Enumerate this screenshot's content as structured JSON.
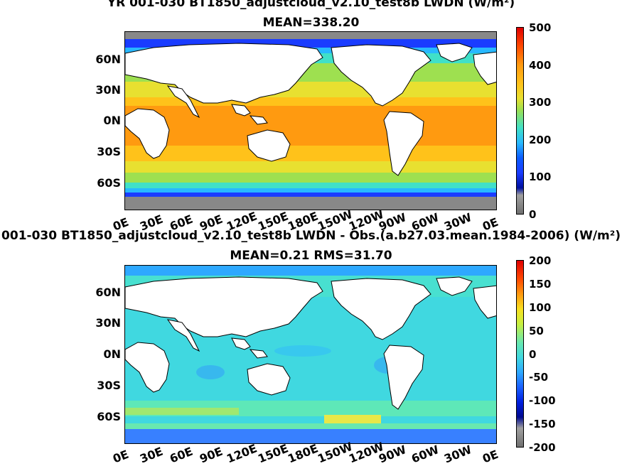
{
  "panels": [
    {
      "title_line1": "YR 001-030 BT1850_adjustcloud_v2.10_test8b LWDN (W/m²)",
      "title_line2": "MEAN=338.20",
      "lat_labels": [
        "60N",
        "30N",
        "0N",
        "30S",
        "60S"
      ],
      "lon_labels": [
        "0E",
        "30E",
        "60E",
        "90E",
        "120E",
        "150E",
        "180E",
        "150W",
        "120W",
        "90W",
        "60W",
        "30W",
        "0E"
      ],
      "colorbar_labels": [
        "500",
        "400",
        "300",
        "200",
        "100",
        "0"
      ]
    },
    {
      "title_line1": "001-030 BT1850_adjustcloud_v2.10_test8b LWDN - Obs.(a.b27.03.mean.1984-2006) (W/m²)",
      "title_line2": "MEAN=0.21 RMS=31.70",
      "lat_labels": [
        "60N",
        "30N",
        "0N",
        "30S",
        "60S"
      ],
      "lon_labels": [
        "0E",
        "30E",
        "60E",
        "90E",
        "120E",
        "150E",
        "180E",
        "150W",
        "120W",
        "90W",
        "60W",
        "30W",
        "0E"
      ],
      "colorbar_labels": [
        "200",
        "150",
        "100",
        "50",
        "0",
        "-50",
        "-100",
        "-150",
        "-200"
      ]
    }
  ],
  "colors": {
    "land": "#ffffff",
    "high": "#ff8c00",
    "mid": "#f5c518",
    "green": "#a8e05a",
    "cyan": "#3ad6d6",
    "blue": "#0030ff",
    "ice": "#777777",
    "diff_base": "#5ee8c8",
    "diff_light": "#38c4e8"
  }
}
